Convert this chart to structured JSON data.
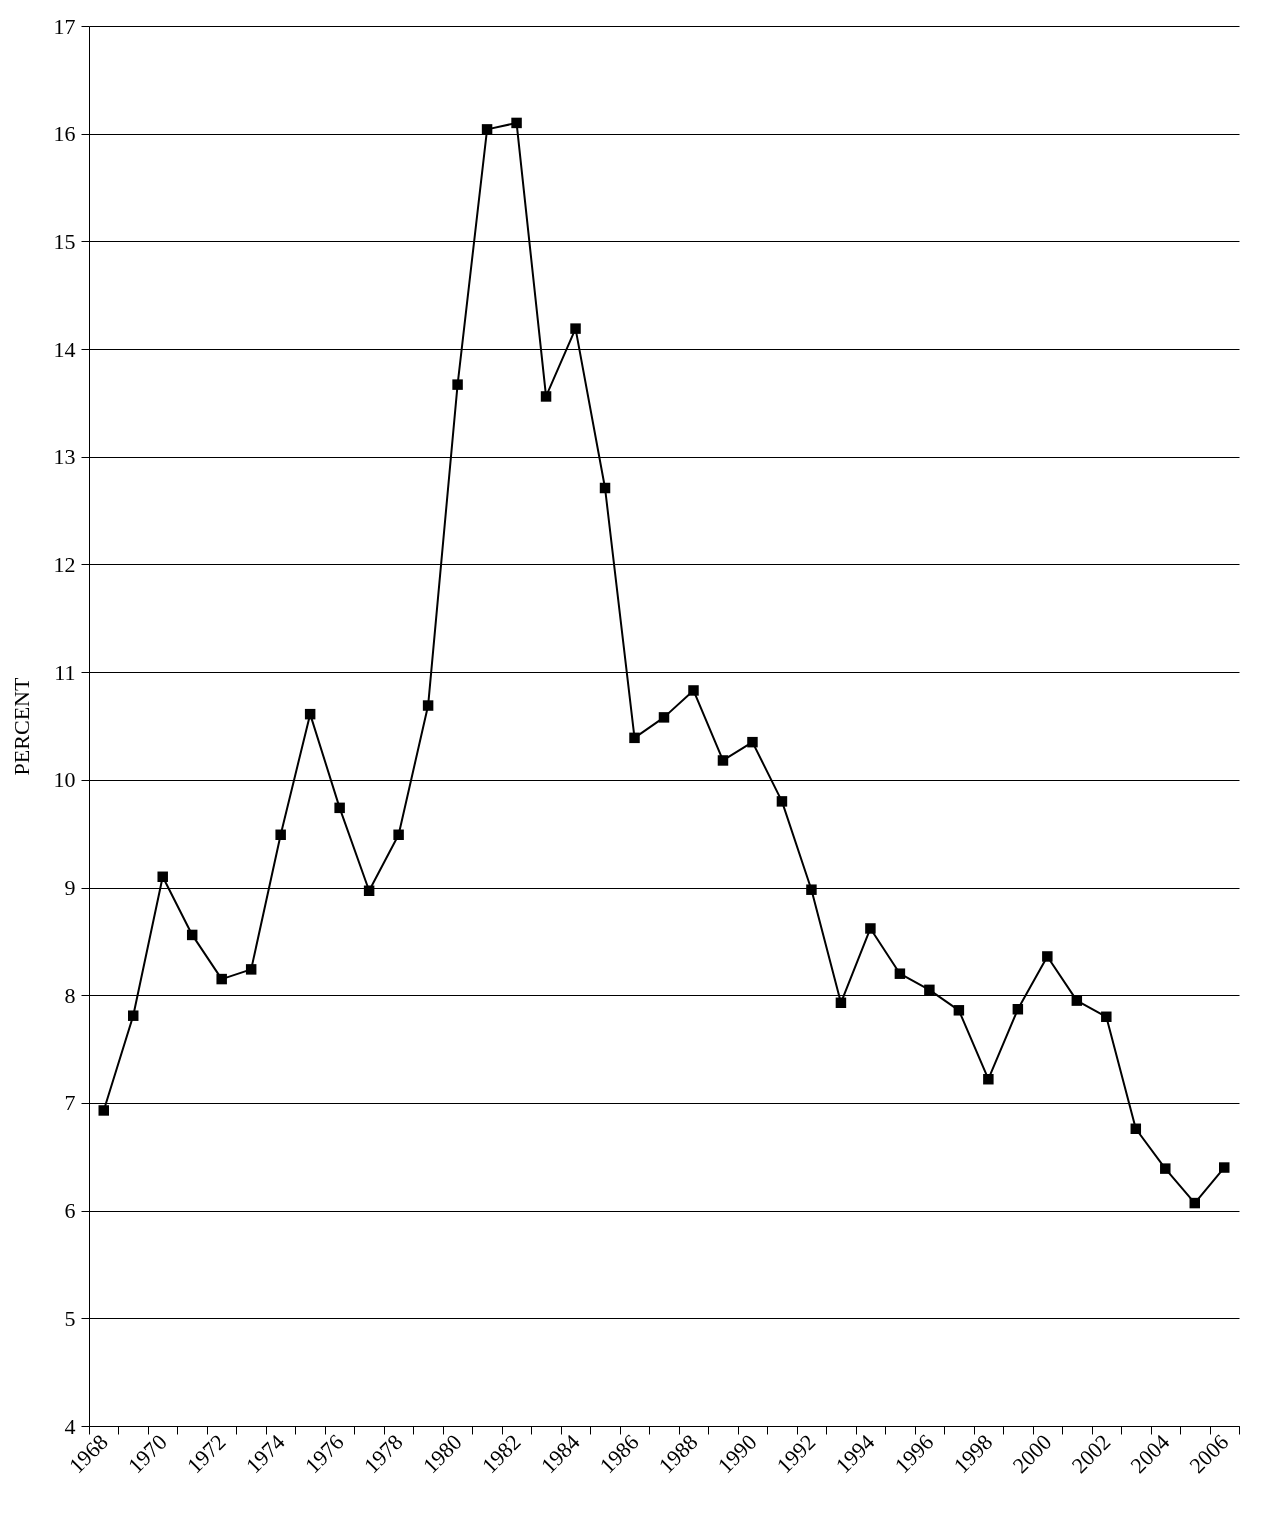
{
  "chart_data": {
    "type": "line",
    "ylabel": "PERCENT",
    "categories": [
      "1968",
      null,
      "1970",
      null,
      "1972",
      null,
      "1974",
      null,
      "1976",
      null,
      "1978",
      null,
      "1980",
      null,
      "1982",
      null,
      "1984",
      null,
      "1986",
      null,
      "1988",
      null,
      "1990",
      null,
      "1992",
      null,
      "1994",
      null,
      "1996",
      null,
      "1998",
      null,
      "2000",
      null,
      "2002",
      null,
      "2004",
      null,
      "2006"
    ],
    "series": [
      {
        "color": "#000000",
        "values": [
          6.93,
          7.81,
          9.1,
          8.56,
          8.15,
          8.24,
          9.49,
          10.61,
          9.74,
          8.97,
          9.49,
          10.69,
          13.67,
          16.04,
          16.1,
          13.56,
          14.19,
          12.71,
          10.39,
          10.58,
          10.83,
          10.18,
          10.35,
          9.8,
          8.98,
          7.93,
          8.62,
          8.2,
          8.05,
          7.86,
          7.22,
          7.87,
          8.36,
          7.95,
          7.8,
          6.76,
          6.39,
          6.07,
          6.4
        ]
      }
    ],
    "ylim": [
      4,
      17
    ],
    "yticks": [
      4,
      5,
      6,
      7,
      8,
      9,
      10,
      11,
      12,
      13,
      14,
      15,
      16,
      17
    ],
    "grid": "y",
    "marker": "square",
    "line_style": "solid"
  }
}
